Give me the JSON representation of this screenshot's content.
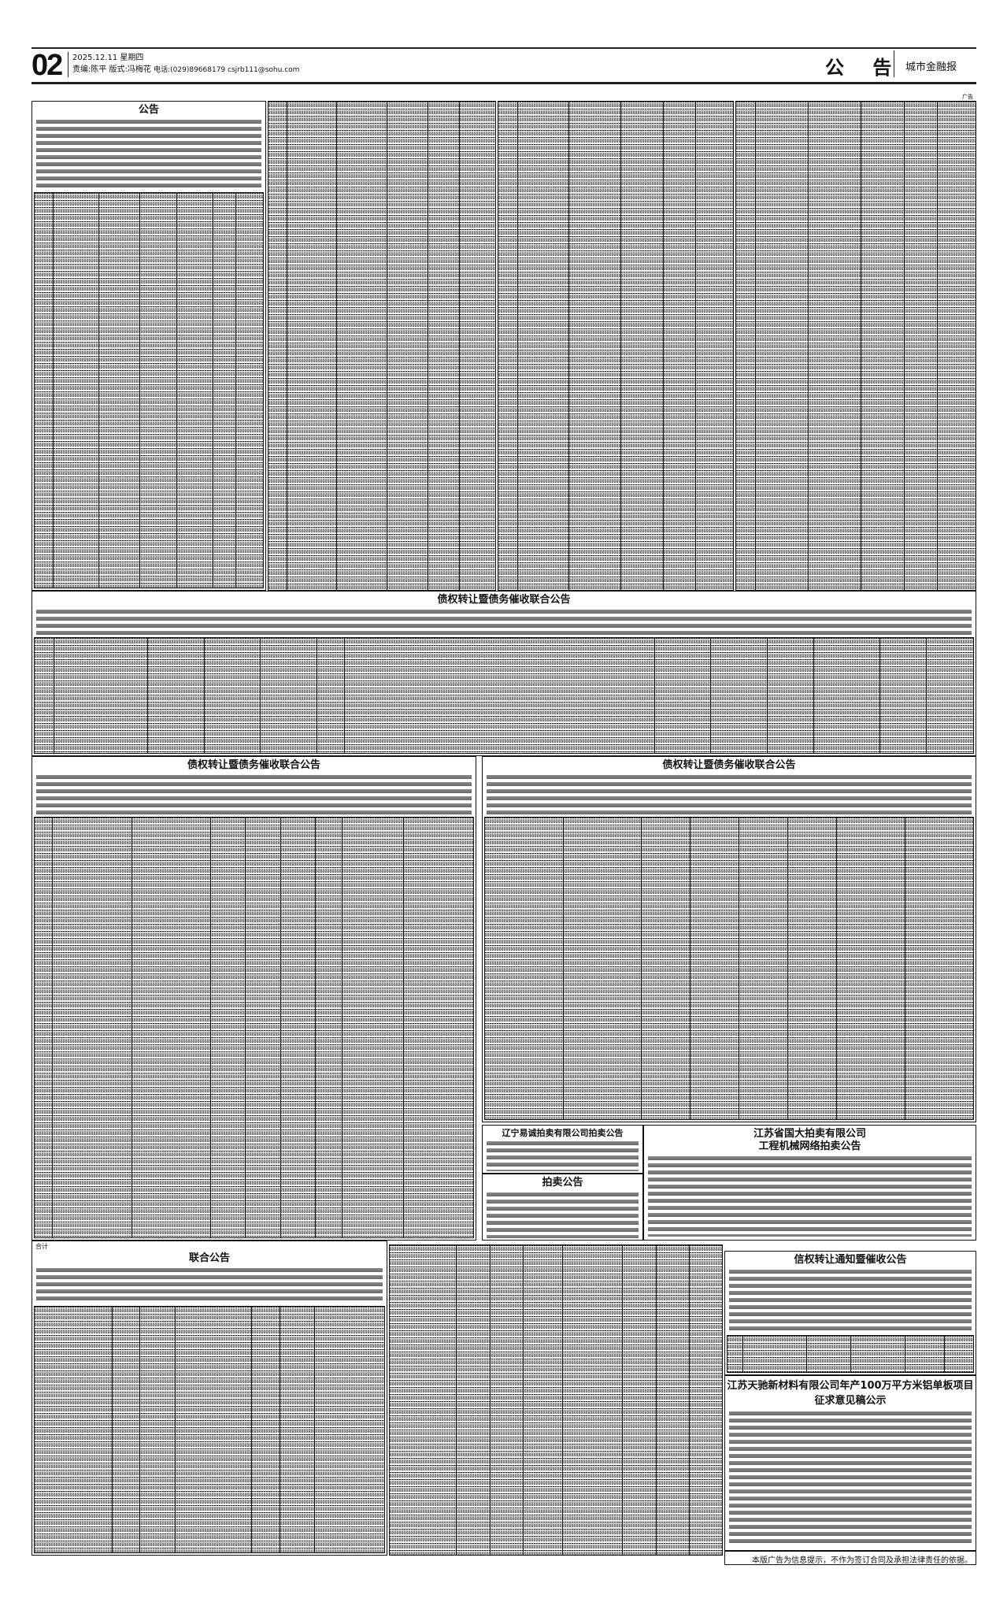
{
  "header": {
    "page_number": "02",
    "date_line": "2025.12.11 星期四",
    "editor_line": "责编:陈平 版式:冯梅花",
    "contact_line": "电话:(029)89668179  csjrb111@sohu.com",
    "section": "公 告",
    "paper_name": "城市金融报",
    "ad_mark": "广告"
  },
  "notices": {
    "top_left_title": "公告",
    "wide_title": "债权转让暨债务催收联合公告",
    "mid_left_title": "债权转让暨债务催收联合公告",
    "mid_right_title": "债权转让暨债务催收联合公告",
    "liaoning_title": "辽宁易诚拍卖有限公司拍卖公告",
    "auction_title": "拍卖公告",
    "jiangsu_guoda_title_1": "江苏省国大拍卖有限公司",
    "jiangsu_guoda_title_2": "工程机械网络拍卖公告",
    "joint_title": "联合公告",
    "joint_total_label": "合计",
    "notice_collect_title": "信权转让通知暨催收公告",
    "tianchi_title_1": "江苏天驰新材料有限公司年产100万平方米铝单板项目",
    "tianchi_title_2": "征求意见稿公示"
  },
  "footer": {
    "disclaimer": "本版广告为信息提示，不作为签订合同及承担法律责任的依据。"
  }
}
